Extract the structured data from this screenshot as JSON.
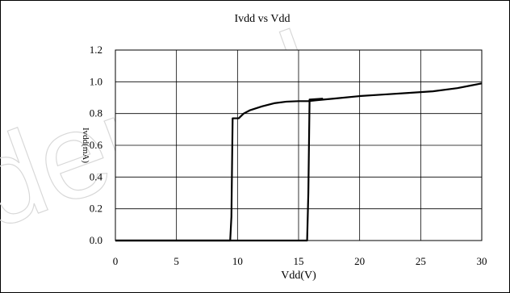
{
  "watermark_text": "dential",
  "chart_data": {
    "type": "line",
    "title": "Ivdd vs Vdd",
    "xlabel": "Vdd(V)",
    "ylabel": "Ivdd(mA)",
    "xlim": [
      0,
      30
    ],
    "ylim": [
      0,
      1.2
    ],
    "x_ticks": [
      0,
      5,
      10,
      15,
      20,
      25,
      30
    ],
    "y_ticks": [
      0.0,
      0.2,
      0.4,
      0.6,
      0.8,
      1.0,
      1.2
    ],
    "x_tick_labels": [
      "0",
      "5",
      "10",
      "15",
      "20",
      "25",
      "30"
    ],
    "y_tick_labels": [
      "0.0",
      "0.2",
      "0.4",
      "0.6",
      "0.8",
      "1.0",
      "1.2"
    ],
    "grid": true,
    "series": [
      {
        "points": [
          [
            0,
            0.0
          ],
          [
            9.4,
            0.0
          ],
          [
            9.5,
            0.15
          ],
          [
            9.6,
            0.77
          ],
          [
            10.1,
            0.77
          ],
          [
            10.5,
            0.8
          ],
          [
            11,
            0.82
          ],
          [
            12,
            0.845
          ],
          [
            13,
            0.865
          ],
          [
            14,
            0.875
          ],
          [
            15,
            0.878
          ],
          [
            15.8,
            0.878
          ],
          [
            16.5,
            0.884
          ],
          [
            18,
            0.895
          ],
          [
            20,
            0.91
          ],
          [
            22,
            0.92
          ],
          [
            24,
            0.93
          ],
          [
            26,
            0.94
          ],
          [
            28,
            0.96
          ],
          [
            29,
            0.975
          ],
          [
            30,
            0.99
          ]
        ]
      },
      {
        "points": [
          [
            0,
            0.0
          ],
          [
            15,
            0.0
          ],
          [
            15.4,
            0.0
          ],
          [
            15.7,
            0.0
          ],
          [
            15.8,
            0.3
          ],
          [
            15.9,
            0.888
          ],
          [
            17,
            0.894
          ]
        ]
      }
    ]
  }
}
